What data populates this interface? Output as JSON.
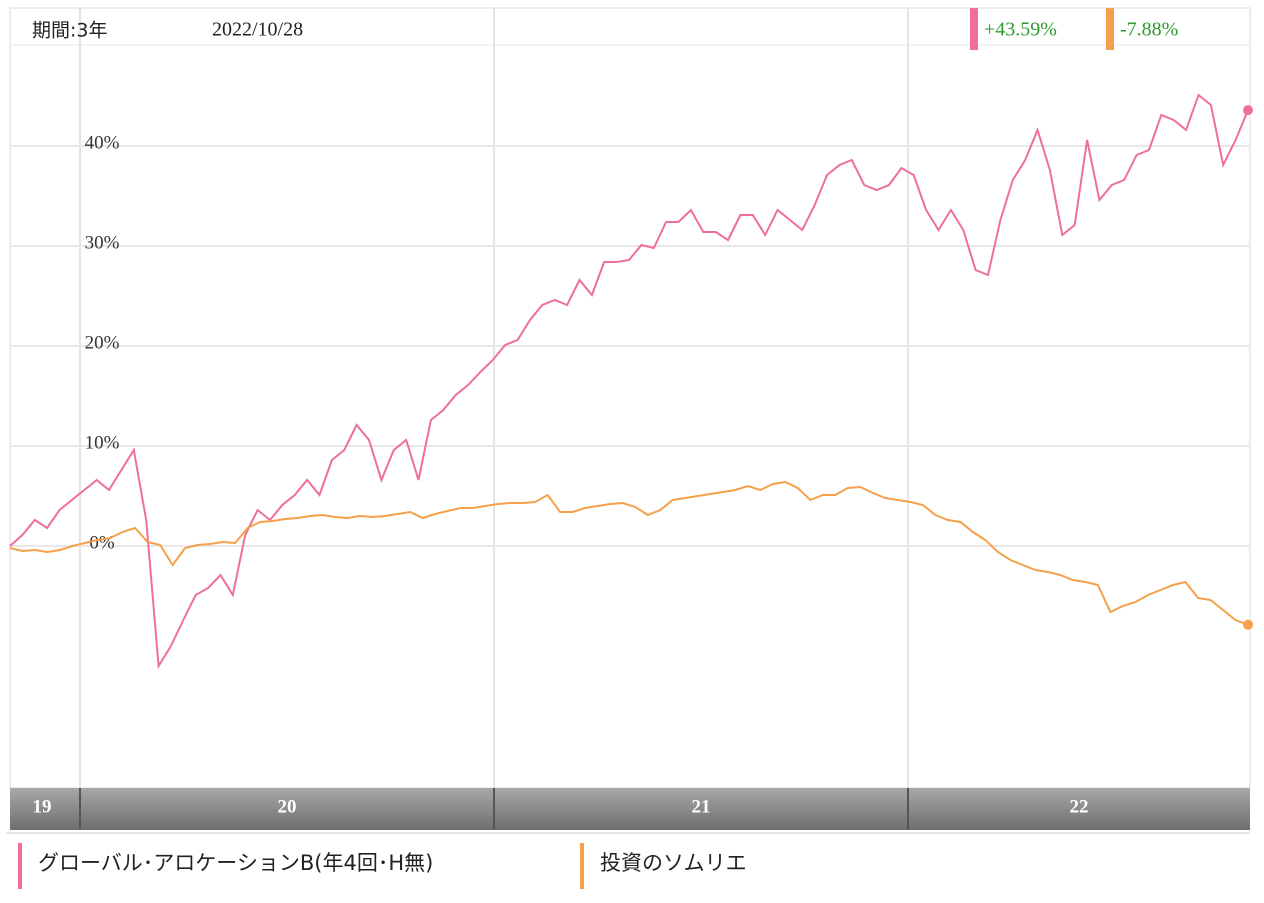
{
  "chart_data": {
    "type": "line",
    "period": "期間:3年",
    "date": "2022/10/28",
    "x_labels": [
      "19",
      "20",
      "21",
      "22"
    ],
    "ylim": [
      -24.2,
      53.8
    ],
    "yticks": [
      {
        "value": 0,
        "label": "0%"
      },
      {
        "value": 10,
        "label": "10%"
      },
      {
        "value": 20,
        "label": "20%"
      },
      {
        "value": 30,
        "label": "30%"
      },
      {
        "value": 40,
        "label": "40%"
      }
    ],
    "grid": true,
    "series": [
      {
        "name": "グローバル･アロケーションB(年4回･H無)",
        "color": "#ee6f9a",
        "end_label": "+43.59%",
        "values": [
          0,
          1.1,
          2.6,
          1.8,
          3.6,
          4.6,
          5.6,
          6.6,
          5.6,
          7.6,
          9.6,
          2.6,
          -12,
          -10,
          -7.4,
          -4.9,
          -4.2,
          -2.9,
          -4.9,
          1.1,
          3.6,
          2.6,
          4.1,
          5.1,
          6.6,
          5.1,
          8.6,
          9.6,
          12.1,
          10.6,
          6.6,
          9.6,
          10.6,
          6.6,
          12.6,
          13.6,
          15.1,
          16.1,
          17.4,
          18.6,
          20.1,
          20.6,
          22.6,
          24.1,
          24.6,
          24.1,
          26.6,
          25.1,
          28.4,
          28.4,
          28.6,
          30.1,
          29.8,
          32.4,
          32.4,
          33.6,
          31.4,
          31.4,
          30.6,
          33.1,
          33.1,
          31.1,
          33.6,
          32.6,
          31.6,
          34.1,
          37.1,
          38.1,
          38.6,
          36.1,
          35.6,
          36.1,
          37.8,
          37.1,
          33.6,
          31.6,
          33.6,
          31.6,
          27.6,
          27.1,
          32.6,
          36.6,
          38.6,
          41.6,
          37.6,
          31.1,
          32.1,
          40.6,
          34.6,
          36.1,
          36.6,
          39.1,
          39.6,
          43.1,
          42.6,
          41.6,
          45.1,
          44.1,
          38.1,
          40.6,
          43.59
        ]
      },
      {
        "name": "投資のソムリエ",
        "color": "#f5a04a",
        "end_label": "-7.88%",
        "values": [
          -0.2,
          -0.5,
          -0.4,
          -0.6,
          -0.4,
          0,
          0.3,
          0.6,
          0.8,
          1.4,
          1.8,
          0.4,
          0.1,
          -1.9,
          -0.2,
          0.1,
          0.2,
          0.4,
          0.3,
          1.8,
          2.4,
          2.5,
          2.7,
          2.8,
          3,
          3.1,
          2.9,
          2.8,
          3,
          2.9,
          3,
          3.2,
          3.4,
          2.8,
          3.2,
          3.5,
          3.8,
          3.8,
          4,
          4.2,
          4.3,
          4.3,
          4.4,
          5.1,
          3.4,
          3.4,
          3.8,
          4,
          4.2,
          4.3,
          3.9,
          3.1,
          3.6,
          4.6,
          4.8,
          5,
          5.2,
          5.4,
          5.6,
          6,
          5.6,
          6.2,
          6.4,
          5.8,
          4.6,
          5.1,
          5.1,
          5.8,
          5.9,
          5.3,
          4.8,
          4.6,
          4.4,
          4.1,
          3.1,
          2.6,
          2.4,
          1.4,
          0.6,
          -0.6,
          -1.4,
          -1.9,
          -2.4,
          -2.6,
          -2.9,
          -3.4,
          -3.6,
          -3.9,
          -6.6,
          -6,
          -5.6,
          -4.9,
          -4.4,
          -3.9,
          -3.6,
          -5.2,
          -5.4,
          -6.4,
          -7.4,
          -7.88
        ]
      }
    ]
  }
}
